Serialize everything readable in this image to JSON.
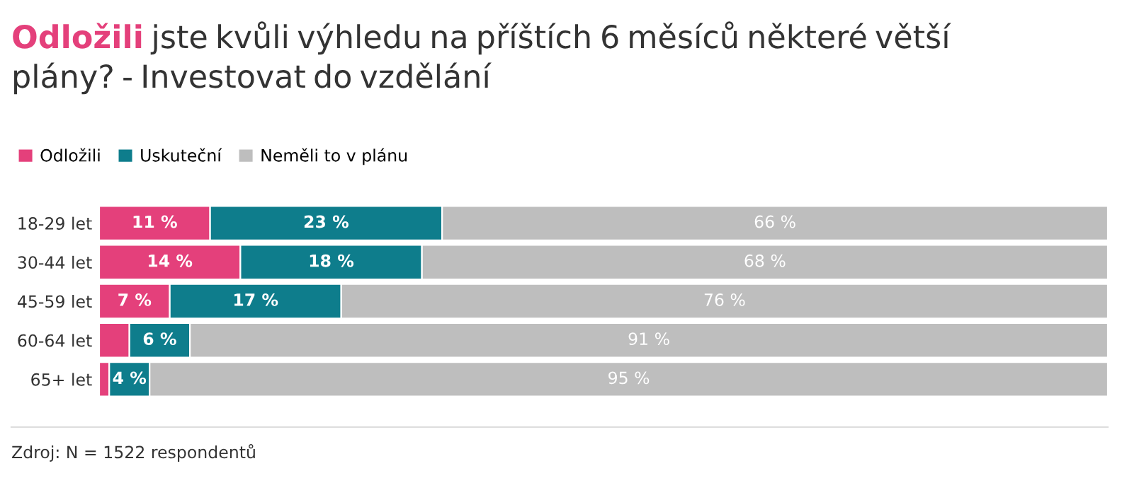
{
  "chart_data": {
    "type": "bar",
    "orientation": "horizontal",
    "stacked": true,
    "title": "Odložili jste kvůli výhledu na příštích 6 měsíců některé větší plány? - Investovat do vzdělání",
    "categories": [
      "18-29 let",
      "30-44 let",
      "45-59 let",
      "60-64 let",
      "65+ let"
    ],
    "series": [
      {
        "name": "Odložili",
        "color": "#e4407b",
        "values": [
          11,
          14,
          7,
          3,
          1
        ],
        "value_labels": [
          "11 %",
          "14 %",
          "7 %",
          null,
          null
        ]
      },
      {
        "name": "Uskuteční",
        "color": "#0e7d8c",
        "values": [
          23,
          18,
          17,
          6,
          4
        ],
        "value_labels": [
          "23 %",
          "18 %",
          "17 %",
          "6 %",
          "4 %"
        ]
      },
      {
        "name": "Neměli to v plánu",
        "color": "#bebebe",
        "values": [
          66,
          68,
          76,
          91,
          95
        ],
        "value_labels": [
          "66 %",
          "68 %",
          "76 %",
          "91 %",
          "95 %"
        ]
      }
    ],
    "xlim": [
      0,
      100
    ],
    "tick_labels": "y",
    "legend": "top left",
    "grid": false,
    "annotations": [
      "Zdroj: N = 1522 respondentů"
    ]
  }
}
